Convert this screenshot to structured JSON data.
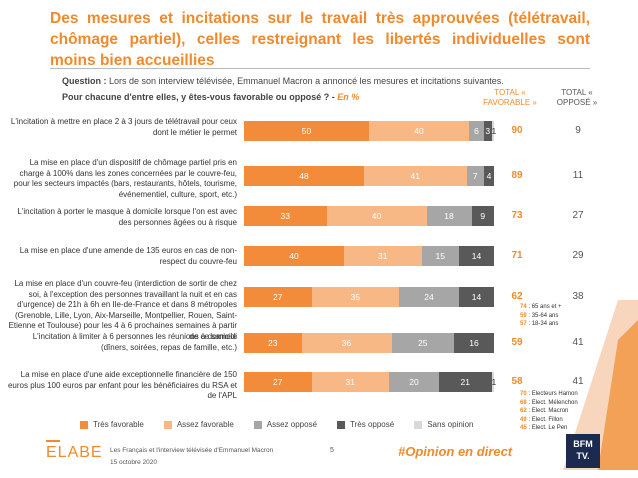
{
  "title": "Des mesures et incitations sur le travail très approuvées (télétravail, chômage partiel), celles restreignant les libertés individuelles sont moins bien accueillies",
  "question_label": "Question :",
  "question_text": "Lors de son interview télévisée, Emmanuel Macron a annoncé les mesures et incitations suivantes.",
  "subquestion": "Pour chacune d'entre elles, y êtes-vous favorable ou opposé ? -",
  "subquestion_unit": "En %",
  "col_fav_header": "TOTAL « FAVORABLE »",
  "col_opp_header": "TOTAL « OPPOSÉ »",
  "colors": {
    "tres_favorable": "#f28c3a",
    "assez_favorable": "#f7b886",
    "assez_oppose": "#a6a6a6",
    "tres_oppose": "#595959",
    "sans_opinion": "#d9d9d9",
    "accent": "#f08a2c"
  },
  "chart_data": {
    "type": "bar",
    "orientation": "horizontal",
    "stacked": true,
    "series_names": [
      "Très favorable",
      "Assez favorable",
      "Assez opposé",
      "Très opposé",
      "Sans opinion"
    ],
    "rows": [
      {
        "label_html": "L'incitation à mettre en place 2 à 3 jours de télétravail pour ceux dont le métier le permet",
        "values": [
          50,
          40,
          6,
          3,
          1
        ],
        "total_fav": "90",
        "total_opp": "9"
      },
      {
        "label_html": "La mise en place d'un dispositif de chômage partiel pris en charge à 100% dans les zones concernées par le couvre-feu, pour les secteurs impactés (bars, restaurants, hôtels, tourisme, événementiel, culture, sport, etc.)",
        "values": [
          48,
          41,
          7,
          4,
          0
        ],
        "total_fav": "89",
        "total_opp": "11"
      },
      {
        "label_html": "L'incitation à porter le masque à domicile lorsque l'on est avec des personnes âgées ou à risque",
        "values": [
          33,
          40,
          18,
          9,
          0
        ],
        "total_fav": "73",
        "total_opp": "27"
      },
      {
        "label_html": "La mise en place d'une amende de 135 euros en cas de non-respect du couvre-feu",
        "values": [
          40,
          31,
          15,
          14,
          0
        ],
        "total_fav": "71",
        "total_opp": "29"
      },
      {
        "label_html": "La mise en place d'un couvre-feu (interdiction de sortir de chez soi, à l'exception des personnes travaillant la nuit et en cas d'urgence) de 21h à 6h en Ile-de-France et dans 8 métropoles (Grenoble, Lille, Lyon, Aix-Marseille, Montpellier, Rouen, Saint-Etienne et Toulouse) pour les 4 à 6 prochaines semaines à partir de ce samedi",
        "values": [
          27,
          35,
          24,
          14,
          0
        ],
        "total_fav": "62",
        "total_opp": "38"
      },
      {
        "label_html": "L'incitation à limiter à 6 personnes les réunions à domicile (dîners, soirées, repas de famille, etc.)",
        "values": [
          23,
          36,
          25,
          16,
          0
        ],
        "total_fav": "59",
        "total_opp": "41"
      },
      {
        "label_html": "La mise en place d'une aide exceptionnelle financière de 150 euros plus 100 euros par enfant pour les bénéficiaires du RSA et de l'APL",
        "values": [
          27,
          31,
          20,
          21,
          1
        ],
        "total_fav": "58",
        "total_opp": "41"
      }
    ]
  },
  "age_breakdown": [
    {
      "value": "74",
      "label": ": 65 ans et +"
    },
    {
      "value": "59",
      "label": ": 35-64 ans"
    },
    {
      "value": "57",
      "label": ": 18-34 ans"
    }
  ],
  "voter_breakdown": [
    {
      "value": "70",
      "label": ": Electeurs Hamon"
    },
    {
      "value": "68",
      "label": ": Elect. Mélenchon"
    },
    {
      "value": "62",
      "label": ": Elect. Macron"
    },
    {
      "value": "49",
      "label": ": Elect. Fillon"
    },
    {
      "value": "45",
      "label": ": Elect. Le Pen"
    }
  ],
  "footer": {
    "logo": "ELABE",
    "line1": "Les Français et l'interview télévisée d'Emmanuel Macron",
    "line2": "15 octobre 2020",
    "page": "5",
    "hashtag": "#Opinion en direct",
    "partner_line1": "BFM",
    "partner_line2": "TV."
  }
}
